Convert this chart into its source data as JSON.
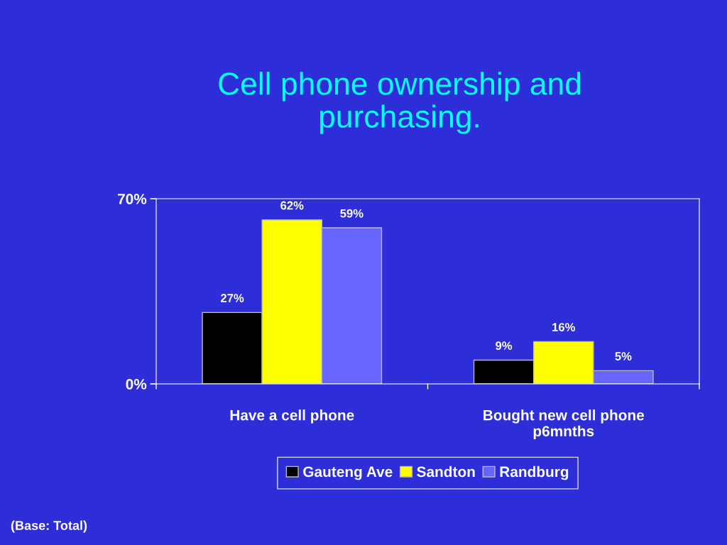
{
  "chart_data": {
    "type": "bar",
    "title": "Cell phone ownership and\npurchasing.",
    "categories": [
      "Have a cell phone",
      "Bought new cell phone\np6mnths"
    ],
    "series": [
      {
        "name": "Gauteng Ave",
        "color": "#000000",
        "values": [
          27,
          9
        ]
      },
      {
        "name": "Sandton",
        "color": "#ffff00",
        "values": [
          62,
          16
        ]
      },
      {
        "name": "Randburg",
        "color": "#6666ff",
        "values": [
          59,
          5
        ]
      }
    ],
    "ylim": [
      0,
      70
    ],
    "yticks": [
      {
        "value": 0,
        "label": "0%"
      },
      {
        "value": 70,
        "label": "70%"
      }
    ],
    "value_labels": [
      [
        "27%",
        "9%"
      ],
      [
        "62%",
        "16%"
      ],
      [
        "59%",
        "5%"
      ]
    ],
    "grid": false,
    "legend": "bottom",
    "annotations": [
      "(Base: Total)"
    ]
  }
}
